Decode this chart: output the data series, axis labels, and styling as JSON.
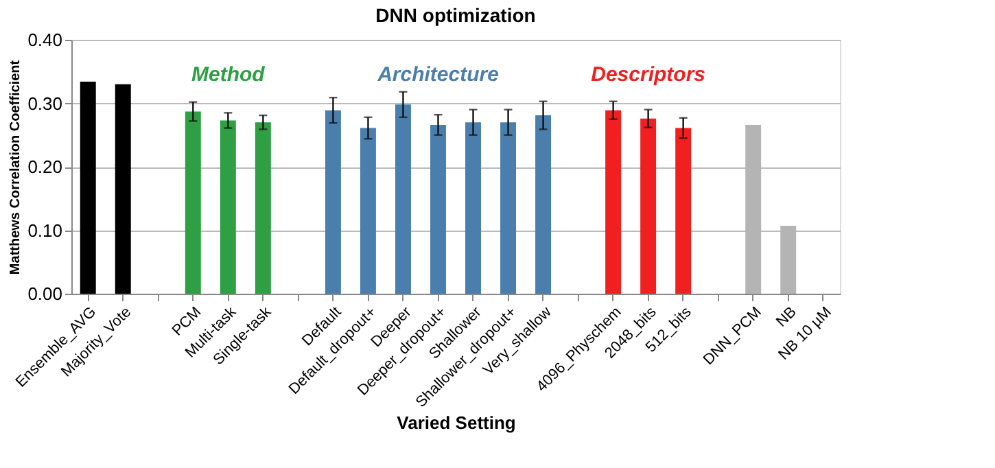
{
  "chart_data": {
    "type": "bar",
    "title": "DNN optimization",
    "xlabel": "Varied Setting",
    "ylabel": "Matthews Correlation Coefficient",
    "categories": [
      "Ensemble_AVG",
      "Majority_Vote",
      null,
      "PCM",
      "Multi-task",
      "Single-task",
      null,
      "Default",
      "Default_dropout+",
      "Deeper",
      "Deeper_dropout+",
      "Shallower",
      "Shallower_dropout+",
      "Very_shallow",
      null,
      "4096_Physchem",
      "2048_bits",
      "512_bits",
      null,
      "DNN_PCM",
      "NB",
      "NB 10 µM"
    ],
    "values": [
      0.334,
      0.33,
      null,
      0.287,
      0.273,
      0.27,
      null,
      0.289,
      0.261,
      0.298,
      0.266,
      0.27,
      0.27,
      0.281,
      null,
      0.289,
      0.276,
      0.261,
      null,
      0.266,
      0.107,
      0
    ],
    "errors": [
      null,
      null,
      null,
      0.015,
      0.012,
      0.011,
      null,
      0.02,
      0.017,
      0.02,
      0.016,
      0.02,
      0.02,
      0.022,
      null,
      0.014,
      0.014,
      0.016,
      null,
      null,
      null,
      null
    ],
    "colors": [
      "#000000",
      "#000000",
      null,
      "#2ea043",
      "#2ea043",
      "#2ea043",
      null,
      "#4a7fad",
      "#4a7fad",
      "#4a7fad",
      "#4a7fad",
      "#4a7fad",
      "#4a7fad",
      "#4a7fad",
      null,
      "#f02020",
      "#f02020",
      "#f02020",
      null,
      "#b4b4b4",
      "#b4b4b4",
      "#b4b4b4"
    ],
    "annotations": [
      "Method",
      "Architecture",
      "Descriptors"
    ],
    "ylim": [
      0,
      0.4
    ],
    "yticks": [
      {
        "value": 0,
        "label": "0.00"
      },
      {
        "value": 0.1,
        "label": "0.10"
      },
      {
        "value": 0.2,
        "label": "0.20"
      },
      {
        "value": 0.3,
        "label": "0.30"
      },
      {
        "value": 0.4,
        "label": "0.40"
      }
    ],
    "grid": "y"
  }
}
